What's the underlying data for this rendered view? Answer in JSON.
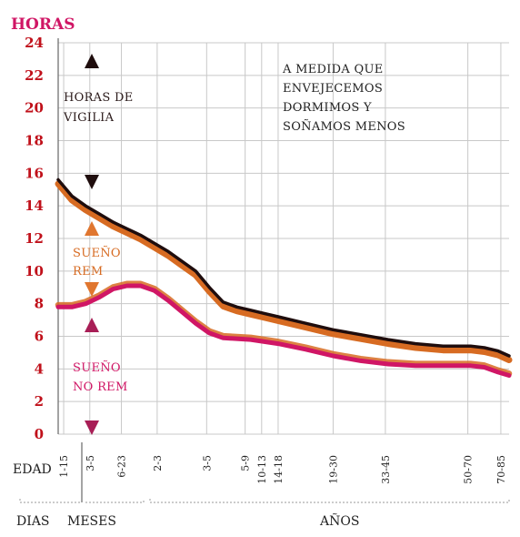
{
  "chart_data": {
    "type": "line",
    "title": "A MEDIDA QUE ENVEJECEMOS DORMIMOS Y SOÑAMOS MENOS",
    "title_lines": [
      "A MEDIDA QUE",
      "ENVEJECEMOS",
      "DORMIMOS Y",
      "SOÑAMOS MENOS"
    ],
    "ylabel": "HORAS",
    "xlabel": "EDAD",
    "ylim": [
      0,
      24
    ],
    "yticks": [
      0,
      2,
      4,
      6,
      8,
      10,
      12,
      14,
      16,
      18,
      20,
      22,
      24
    ],
    "x_labels": [
      "1-15",
      "3-5",
      "6-23",
      "2-3",
      "3-5",
      "5-9",
      "10-13",
      "14-18",
      "19-30",
      "33-45",
      "50-70",
      "70-85"
    ],
    "x_groups": [
      "DIAS",
      "MESES",
      "AÑOS"
    ],
    "grid": true,
    "colors": {
      "total": "#1f0d0d",
      "rem_band": "#d76b22",
      "nrem": "#d01665",
      "ylabel": "#d01665",
      "ytick": "#c0101a"
    },
    "annotations": {
      "vigilia": [
        "HORAS DE",
        "VIGILIA"
      ],
      "rem": [
        "SUEÑO",
        "REM"
      ],
      "nrem": [
        "SUEÑO",
        "NO REM"
      ]
    },
    "series": [
      {
        "key": "total",
        "values": [
          [
            0,
            15.6
          ],
          [
            0.3,
            15
          ],
          [
            0.5,
            14.6
          ],
          [
            1,
            14
          ],
          [
            1.5,
            13.5
          ],
          [
            2,
            13
          ],
          [
            2.5,
            12.6
          ],
          [
            3,
            12.2
          ],
          [
            3.5,
            11.7
          ],
          [
            4,
            11.2
          ],
          [
            4.5,
            10.6
          ],
          [
            5,
            10
          ],
          [
            5.5,
            9
          ],
          [
            6,
            8.1
          ],
          [
            6.5,
            7.8
          ],
          [
            7,
            7.6
          ],
          [
            7.5,
            7.4
          ],
          [
            8,
            7.2
          ],
          [
            9,
            6.8
          ],
          [
            10,
            6.4
          ],
          [
            11,
            6.1
          ],
          [
            12,
            5.8
          ],
          [
            13,
            5.55
          ],
          [
            14,
            5.4
          ],
          [
            15,
            5.4
          ],
          [
            15.5,
            5.3
          ],
          [
            16,
            5.1
          ],
          [
            16.4,
            4.8
          ]
        ]
      },
      {
        "key": "nrem",
        "values": [
          [
            0,
            7.8
          ],
          [
            0.5,
            7.8
          ],
          [
            1,
            8
          ],
          [
            1.5,
            8.4
          ],
          [
            2,
            8.9
          ],
          [
            2.5,
            9.1
          ],
          [
            3,
            9.1
          ],
          [
            3.5,
            8.8
          ],
          [
            4,
            8.2
          ],
          [
            4.5,
            7.5
          ],
          [
            5,
            6.8
          ],
          [
            5.5,
            6.2
          ],
          [
            6,
            5.9
          ],
          [
            7,
            5.8
          ],
          [
            8,
            5.55
          ],
          [
            9,
            5.2
          ],
          [
            10,
            4.8
          ],
          [
            11,
            4.5
          ],
          [
            12,
            4.3
          ],
          [
            13,
            4.2
          ],
          [
            14,
            4.2
          ],
          [
            15,
            4.2
          ],
          [
            15.5,
            4.1
          ],
          [
            16,
            3.8
          ],
          [
            16.4,
            3.6
          ]
        ]
      }
    ]
  }
}
